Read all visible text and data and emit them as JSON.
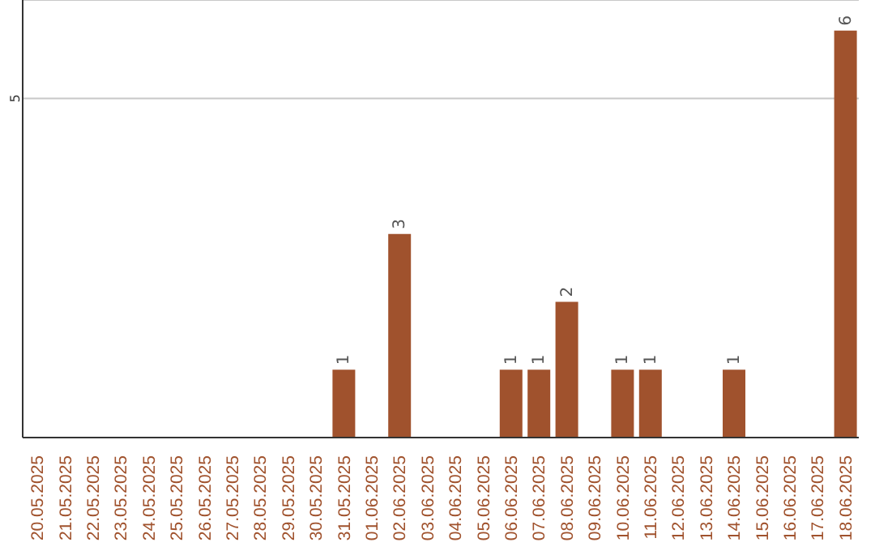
{
  "chart_data": {
    "type": "bar",
    "categories": [
      "20.05.2025",
      "21.05.2025",
      "22.05.2025",
      "23.05.2025",
      "24.05.2025",
      "25.05.2025",
      "26.05.2025",
      "27.05.2025",
      "28.05.2025",
      "29.05.2025",
      "30.05.2025",
      "31.05.2025",
      "01.06.2025",
      "02.06.2025",
      "03.06.2025",
      "04.06.2025",
      "05.06.2025",
      "06.06.2025",
      "07.06.2025",
      "08.06.2025",
      "09.06.2025",
      "10.06.2025",
      "11.06.2025",
      "12.06.2025",
      "13.06.2025",
      "14.06.2025",
      "15.06.2025",
      "16.06.2025",
      "17.06.2025",
      "18.06.2025"
    ],
    "values": [
      0,
      0,
      0,
      0,
      0,
      0,
      0,
      0,
      0,
      0,
      0,
      1,
      0,
      3,
      0,
      0,
      0,
      1,
      1,
      2,
      0,
      1,
      1,
      0,
      0,
      1,
      0,
      0,
      0,
      6
    ],
    "value_labels": [
      null,
      null,
      null,
      null,
      null,
      null,
      null,
      null,
      null,
      null,
      null,
      "1",
      null,
      "3",
      null,
      null,
      null,
      "1",
      "1",
      "2",
      null,
      "1",
      "1",
      null,
      null,
      "1",
      null,
      null,
      null,
      "6"
    ],
    "color": "#a0522d",
    "ylim": [
      0,
      6.45
    ],
    "yticks": [
      5
    ],
    "grid": "y"
  }
}
